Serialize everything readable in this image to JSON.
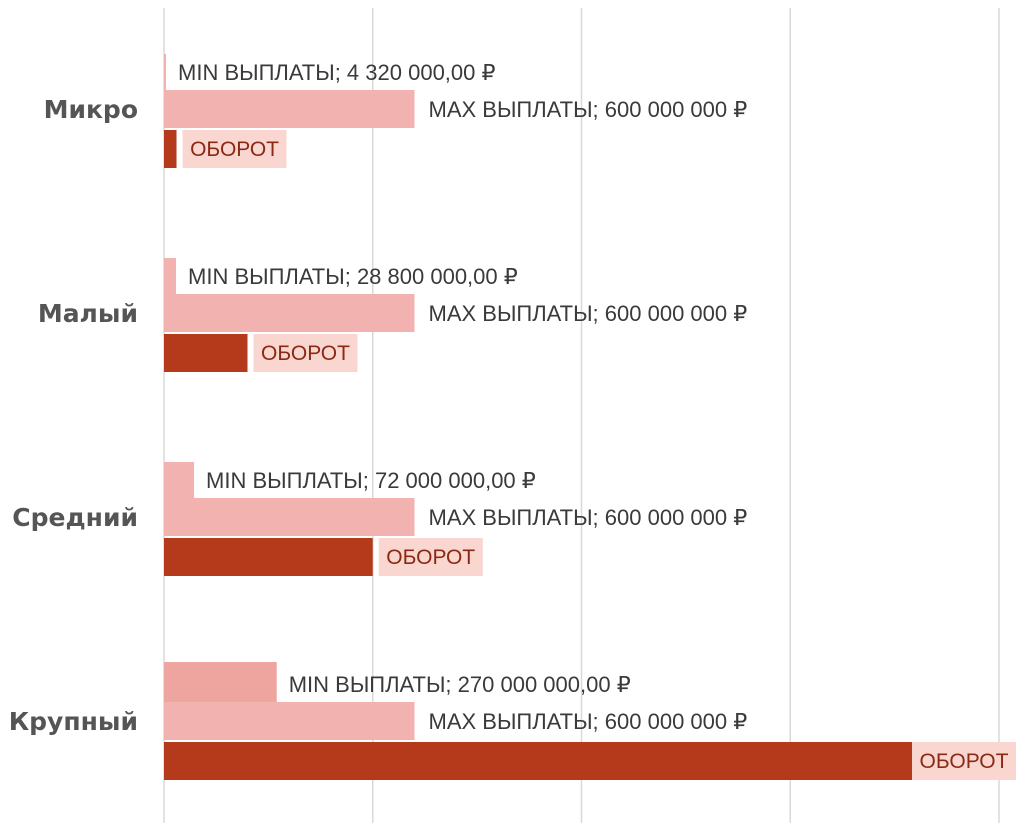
{
  "chart_data": {
    "type": "bar",
    "orientation": "horizontal",
    "categories": [
      "Микро",
      "Малый",
      "Средний",
      "Крупный"
    ],
    "xlim": [
      0,
      2000000000
    ],
    "grid": true,
    "series": [
      {
        "key": "min",
        "values": [
          4320000,
          28800000,
          72000000,
          270000000
        ],
        "labels": [
          "MIN ВЫПЛАТЫ; 4 320 000,00 ₽",
          "MIN ВЫПЛАТЫ; 28 800 000,00 ₽",
          "MIN ВЫПЛАТЫ; 72 000 000,00 ₽",
          "MIN ВЫПЛАТЫ; 270 000 000,00 ₽"
        ]
      },
      {
        "key": "max",
        "values": [
          600000000,
          600000000,
          600000000,
          600000000
        ],
        "labels": [
          "MAX ВЫПЛАТЫ; 600 000 000 ₽",
          "MAX ВЫПЛАТЫ; 600 000 000 ₽",
          "MAX ВЫПЛАТЫ; 600 000 000 ₽",
          "MAX ВЫПЛАТЫ; 600 000 000 ₽"
        ]
      },
      {
        "key": "turnover",
        "values": [
          30000000,
          200000000,
          500000000,
          1880000000
        ],
        "labels": [
          "ОБОРОТ",
          "ОБОРОТ",
          "ОБОРОТ",
          "ОБОРОТ"
        ]
      }
    ],
    "colors": {
      "min": "#f2b3b0",
      "min_large": "#eea5a0",
      "max": "#f2b3b0",
      "turnover": "#b53a1c",
      "turnover_label_bg": "#f9d6cf",
      "gridline": "#d9d9d9",
      "category_text": "#555555"
    }
  }
}
